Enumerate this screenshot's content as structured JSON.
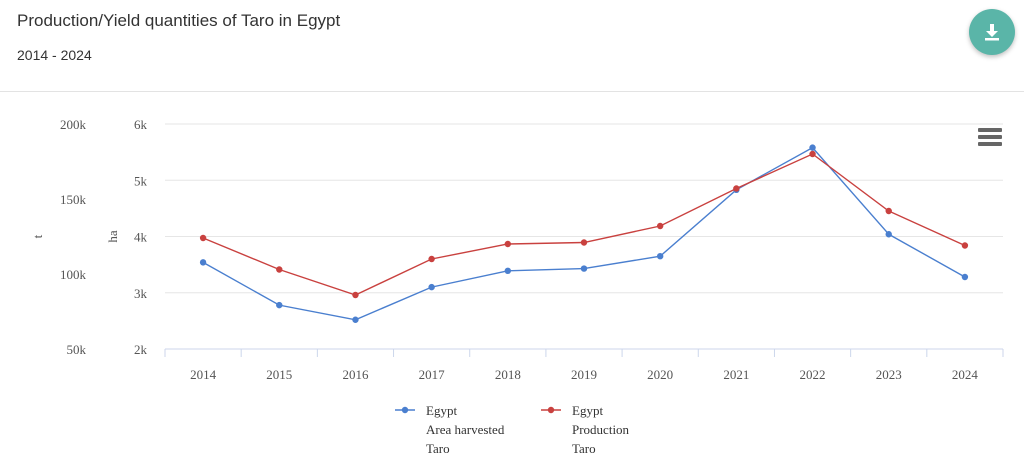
{
  "header": {
    "title": "Production/Yield quantities of Taro in Egypt",
    "subtitle": "2014 - 2024",
    "download_icon": "download-icon",
    "menu_icon": "hamburger-menu-icon"
  },
  "colors": {
    "accent": "#5ab5a8",
    "series_area": "#4a7fcf",
    "series_production": "#c9413f"
  },
  "chart_data": {
    "type": "line",
    "title": "Production/Yield quantities of Taro in Egypt",
    "subtitle": "2014 - 2024",
    "x": [
      "2014",
      "2015",
      "2016",
      "2017",
      "2018",
      "2019",
      "2020",
      "2021",
      "2022",
      "2023",
      "2024"
    ],
    "axes": {
      "left_outer": {
        "label": "t",
        "ylim": [
          50000,
          200000
        ],
        "ticks": [
          "50k",
          "100k",
          "150k",
          "200k"
        ],
        "tick_values": [
          50000,
          100000,
          150000,
          200000
        ]
      },
      "left_inner": {
        "label": "ha",
        "ylim": [
          2000,
          6000
        ],
        "ticks": [
          "2k",
          "3k",
          "4k",
          "5k",
          "6k"
        ],
        "tick_values": [
          2000,
          3000,
          4000,
          5000,
          6000
        ]
      }
    },
    "grid": true,
    "legend": "bottom-center",
    "series": [
      {
        "name": "Egypt Area harvested Taro",
        "legend_lines": [
          "Egypt",
          "Area harvested",
          "Taro"
        ],
        "axis": "left_inner",
        "color": "#4a7fcf",
        "values": [
          3540,
          2780,
          2520,
          3100,
          3390,
          3430,
          3650,
          4830,
          5580,
          4040,
          3280
        ]
      },
      {
        "name": "Egypt Production Taro",
        "legend_lines": [
          "Egypt",
          "Production",
          "Taro"
        ],
        "axis": "left_outer",
        "color": "#c9413f",
        "values": [
          124000,
          103000,
          86000,
          110000,
          120000,
          121000,
          132000,
          157000,
          180000,
          142000,
          119000
        ]
      }
    ]
  }
}
